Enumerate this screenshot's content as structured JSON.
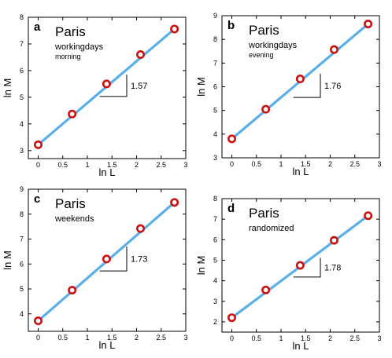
{
  "colors": {
    "line": "#5aafe8",
    "marker_edge": "#cc1111",
    "marker_fill": "#ffffff"
  },
  "chart_data": [
    {
      "type": "scatter",
      "panel": "a",
      "title": "Paris",
      "subtitle_lines": [
        "workingdays",
        "morning"
      ],
      "xlabel": "ln L",
      "ylabel": "ln M",
      "xlim": [
        -0.2,
        3
      ],
      "ylim": [
        2.7,
        8
      ],
      "xticks": [
        0,
        0.5,
        1,
        1.5,
        2,
        2.5,
        3
      ],
      "yticks": [
        3,
        4,
        5,
        6,
        7,
        8
      ],
      "points": [
        [
          0,
          3.22
        ],
        [
          0.69,
          4.37
        ],
        [
          1.39,
          5.5
        ],
        [
          2.08,
          6.6
        ],
        [
          2.77,
          7.56
        ]
      ],
      "fit": {
        "x": [
          0,
          2.77
        ],
        "y": [
          3.22,
          7.56
        ]
      },
      "slope": {
        "label": "1.57",
        "x0": 1.25,
        "x1": 1.8,
        "y_low": 5.03,
        "y_high": 5.85
      },
      "grid": false,
      "legend": "none"
    },
    {
      "type": "scatter",
      "panel": "b",
      "title": "Paris",
      "subtitle_lines": [
        "workingdays",
        "evening"
      ],
      "xlabel": "ln L",
      "ylabel": "ln M",
      "xlim": [
        -0.2,
        3
      ],
      "ylim": [
        3,
        9
      ],
      "xticks": [
        0,
        0.5,
        1,
        1.5,
        2,
        2.5,
        3
      ],
      "yticks": [
        3,
        4,
        5,
        6,
        7,
        8,
        9
      ],
      "points": [
        [
          0,
          3.8
        ],
        [
          0.69,
          5.05
        ],
        [
          1.39,
          6.33
        ],
        [
          2.08,
          7.57
        ],
        [
          2.77,
          8.65
        ]
      ],
      "fit": {
        "x": [
          0,
          2.77
        ],
        "y": [
          3.8,
          8.65
        ]
      },
      "slope": {
        "label": "1.76",
        "x0": 1.25,
        "x1": 1.8,
        "y_low": 5.55,
        "y_high": 6.55
      },
      "grid": false,
      "legend": "none"
    },
    {
      "type": "scatter",
      "panel": "c",
      "title": "Paris",
      "subtitle_lines": [
        "weekends"
      ],
      "xlabel": "ln L",
      "ylabel": "ln M",
      "xlim": [
        -0.2,
        3
      ],
      "ylim": [
        3.3,
        9
      ],
      "xticks": [
        0,
        0.5,
        1,
        1.5,
        2,
        2.5,
        3
      ],
      "yticks": [
        4,
        5,
        6,
        7,
        8,
        9
      ],
      "points": [
        [
          0,
          3.72
        ],
        [
          0.69,
          4.95
        ],
        [
          1.39,
          6.2
        ],
        [
          2.08,
          7.42
        ],
        [
          2.77,
          8.47
        ]
      ],
      "fit": {
        "x": [
          0,
          2.77
        ],
        "y": [
          3.72,
          8.47
        ]
      },
      "slope": {
        "label": "1.73",
        "x0": 1.25,
        "x1": 1.8,
        "y_low": 5.72,
        "y_high": 6.7
      },
      "grid": false,
      "legend": "none"
    },
    {
      "type": "scatter",
      "panel": "d",
      "title": "Paris",
      "subtitle_lines": [
        "randomized"
      ],
      "xlabel": "ln L",
      "ylabel": "ln M",
      "xlim": [
        -0.2,
        3
      ],
      "ylim": [
        1.5,
        8
      ],
      "xticks": [
        0,
        0.5,
        1,
        1.5,
        2,
        2.5,
        3
      ],
      "yticks": [
        2,
        3,
        4,
        5,
        6,
        7,
        8
      ],
      "points": [
        [
          0,
          2.2
        ],
        [
          0.69,
          3.55
        ],
        [
          1.39,
          4.75
        ],
        [
          2.08,
          5.97
        ],
        [
          2.77,
          7.17
        ]
      ],
      "fit": {
        "x": [
          0,
          2.77
        ],
        "y": [
          2.2,
          7.17
        ]
      },
      "slope": {
        "label": "1.78",
        "x0": 1.25,
        "x1": 1.8,
        "y_low": 4.18,
        "y_high": 5.12
      },
      "grid": false,
      "legend": "none"
    }
  ]
}
